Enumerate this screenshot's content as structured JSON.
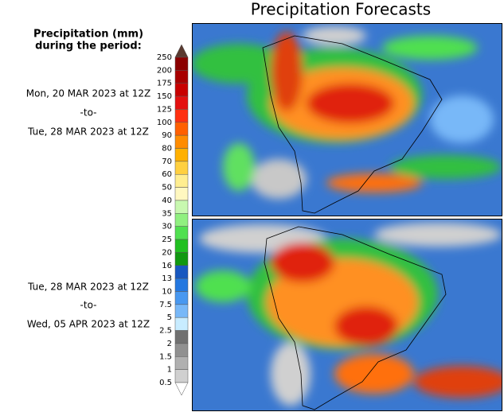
{
  "header": {
    "title": "Precipitation Forecasts"
  },
  "legend": {
    "title_line1": "Precipitation (mm)",
    "title_line2": "during the period:",
    "levels": [
      "250",
      "200",
      "175",
      "150",
      "125",
      "100",
      "90",
      "80",
      "70",
      "60",
      "50",
      "40",
      "35",
      "30",
      "25",
      "20",
      "16",
      "13",
      "10",
      "7.5",
      "5",
      "2.5",
      "2",
      "1.5",
      "1",
      "0.5"
    ],
    "colors": [
      "#5a3a30",
      "#8b0000",
      "#a80000",
      "#c80000",
      "#e41010",
      "#ff3010",
      "#ff6000",
      "#ff8c00",
      "#ffb000",
      "#ffd040",
      "#ffee90",
      "#fff8c0",
      "#c8f8b0",
      "#90f080",
      "#50e050",
      "#20c020",
      "#109810",
      "#1858c0",
      "#2478e0",
      "#4898f0",
      "#78b8f8",
      "#c8ecff",
      "#707070",
      "#909090",
      "#b0b0b0",
      "#d0d0d0",
      "#ffffff"
    ]
  },
  "periods": [
    {
      "from": "Mon, 20 MAR 2023 at 12Z",
      "separator": "-to-",
      "to": "Tue, 28 MAR 2023 at 12Z"
    },
    {
      "from": "Tue, 28 MAR 2023 at 12Z",
      "separator": "-to-",
      "to": "Wed, 05 APR 2023 at 12Z"
    }
  ]
}
